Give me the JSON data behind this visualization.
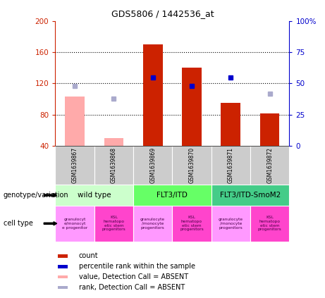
{
  "title": "GDS5806 / 1442536_at",
  "samples": [
    "GSM1639867",
    "GSM1639868",
    "GSM1639869",
    "GSM1639870",
    "GSM1639871",
    "GSM1639872"
  ],
  "count_values": [
    null,
    null,
    170,
    140,
    95,
    82
  ],
  "count_absent_values": [
    103,
    50,
    null,
    null,
    null,
    null
  ],
  "rank_values_right": [
    null,
    null,
    55,
    48,
    55,
    null
  ],
  "rank_absent_values_right": [
    48,
    38,
    null,
    null,
    null,
    42
  ],
  "ylim_left": [
    40,
    200
  ],
  "ylim_right": [
    0,
    100
  ],
  "yticks_left": [
    40,
    80,
    120,
    160,
    200
  ],
  "ytick_labels_left": [
    "40",
    "80",
    "120",
    "160",
    "200"
  ],
  "yticks_right": [
    0,
    25,
    50,
    75,
    100
  ],
  "ytick_labels_right": [
    "0",
    "25",
    "50",
    "75",
    "100%"
  ],
  "color_count": "#cc2200",
  "color_rank": "#0000cc",
  "color_absent_value": "#ffaaaa",
  "color_absent_rank": "#aaaacc",
  "genotype_groups": [
    {
      "label": "wild type",
      "start": 0,
      "end": 1,
      "color": "#ccffcc"
    },
    {
      "label": "FLT3/ITD",
      "start": 2,
      "end": 3,
      "color": "#66ff66"
    },
    {
      "label": "FLT3/ITD-SmoM2",
      "start": 4,
      "end": 5,
      "color": "#44cc88"
    }
  ],
  "cell_type_labels": [
    "granulocyt\ne/monocyt\ne progenitor",
    "KSL\nhematopo\netic stem\nprogenitors",
    "granulocyte\n/monocyte\nprogenitors",
    "KSL\nhematopo\netic stem\nprogenitors",
    "granulocyte\n/monocyte\nprogenitors",
    "KSL\nhematopo\netic stem\nprogenitors"
  ],
  "cell_type_colors": [
    "#ff99ff",
    "#ff44cc",
    "#ff99ff",
    "#ff44cc",
    "#ff99ff",
    "#ff44cc"
  ],
  "legend_items": [
    {
      "label": "count",
      "color": "#cc2200"
    },
    {
      "label": "percentile rank within the sample",
      "color": "#0000cc"
    },
    {
      "label": "value, Detection Call = ABSENT",
      "color": "#ffaaaa"
    },
    {
      "label": "rank, Detection Call = ABSENT",
      "color": "#aaaacc"
    }
  ],
  "bar_width": 0.5
}
